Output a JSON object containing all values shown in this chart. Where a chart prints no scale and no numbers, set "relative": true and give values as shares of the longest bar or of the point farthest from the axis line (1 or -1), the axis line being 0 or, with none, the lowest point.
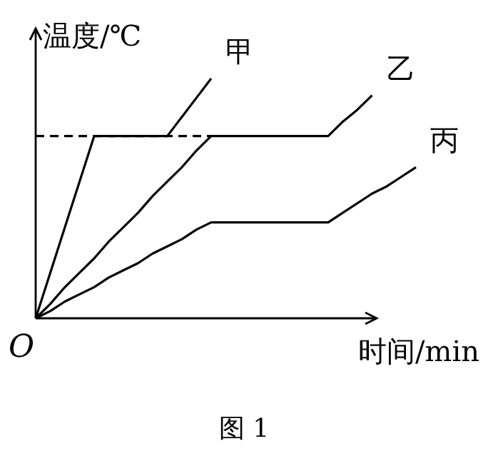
{
  "chart_data": {
    "type": "line",
    "relative": true,
    "xlabel": "时间/min",
    "ylabel": "温度/℃",
    "grid": false,
    "marker": "none",
    "line_style": "solid",
    "categories": [
      null,
      null,
      null,
      null,
      null,
      null,
      null,
      null,
      null,
      null,
      null,
      null,
      null,
      null,
      null,
      null,
      null,
      null,
      null,
      null,
      null,
      null,
      null,
      null,
      null,
      null,
      null
    ],
    "annotations": [
      "O",
      "图 1"
    ],
    "series": [
      {
        "name": "甲",
        "color": "#000000",
        "values": [
          0,
          0.19,
          0.38,
          0.57,
          0.76,
          0.76,
          0.76,
          0.76,
          0.76,
          0.76,
          0.84,
          0.92,
          1,
          null,
          null,
          null,
          null,
          null,
          null,
          null,
          null,
          null,
          null,
          null,
          null,
          null,
          null
        ]
      },
      {
        "name": "乙",
        "color": "#000000",
        "values": [
          0,
          0.06,
          0.13,
          0.19,
          0.25,
          0.32,
          0.38,
          0.44,
          0.51,
          0.57,
          0.63,
          0.7,
          0.76,
          0.76,
          0.76,
          0.76,
          0.76,
          0.76,
          0.76,
          0.76,
          0.76,
          0.82,
          0.87,
          0.93,
          null,
          null,
          null
        ]
      },
      {
        "name": "丙",
        "color": "#000000",
        "values": [
          0,
          0.03,
          0.07,
          0.1,
          0.13,
          0.17,
          0.2,
          0.23,
          0.27,
          0.3,
          0.33,
          0.37,
          0.4,
          0.4,
          0.4,
          0.4,
          0.4,
          0.4,
          0.4,
          0.4,
          0.4,
          0.44,
          0.48,
          0.52,
          0.55,
          0.59,
          0.63
        ]
      },
      {
        "color": "#000000",
        "line_style": "dashed",
        "values": [
          0.76,
          0.76,
          0.76,
          0.76,
          0.76,
          0.76,
          0.76,
          0.76,
          0.76,
          0.76,
          0.76,
          0.76,
          0.76,
          null,
          null,
          null,
          null,
          null,
          null,
          null,
          null,
          null,
          null,
          null,
          null,
          null,
          null
        ]
      }
    ]
  }
}
